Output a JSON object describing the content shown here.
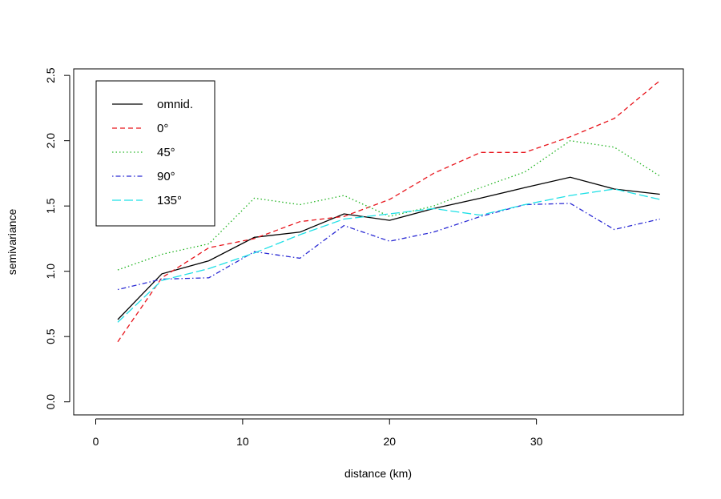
{
  "chart_data": {
    "type": "line",
    "xlabel": "distance (km)",
    "ylabel": "semivariance",
    "xlim": [
      -1.5,
      40
    ],
    "ylim": [
      -0.1,
      2.55
    ],
    "x_ticks": [
      0,
      10,
      20,
      30
    ],
    "y_ticks": [
      0.0,
      0.5,
      1.0,
      1.5,
      2.0,
      2.5
    ],
    "x_tick_labels": [
      "0",
      "10",
      "20",
      "30"
    ],
    "y_tick_labels": [
      "0.0",
      "0.5",
      "1.0",
      "1.5",
      "2.0",
      "2.5"
    ],
    "grid": false,
    "legend_position": "top-left",
    "x": [
      1.5,
      4.5,
      7.7,
      10.8,
      13.9,
      16.9,
      20.0,
      23.0,
      26.2,
      29.2,
      32.3,
      35.3,
      38.4
    ],
    "series": [
      {
        "name": "omnid.",
        "color": "#000000",
        "dash": "solid",
        "values": [
          0.63,
          0.98,
          1.08,
          1.26,
          1.3,
          1.44,
          1.39,
          1.48,
          1.56,
          1.64,
          1.72,
          1.63,
          1.59
        ]
      },
      {
        "name": "0°",
        "color": "#e8141b",
        "dash": "dashed",
        "values": [
          0.46,
          0.95,
          1.18,
          1.25,
          1.38,
          1.42,
          1.55,
          1.75,
          1.91,
          1.91,
          2.03,
          2.17,
          2.46
        ]
      },
      {
        "name": "45°",
        "color": "#22b422",
        "dash": "dotted",
        "values": [
          1.01,
          1.13,
          1.21,
          1.56,
          1.51,
          1.58,
          1.42,
          1.5,
          1.64,
          1.76,
          2.0,
          1.95,
          1.73
        ]
      },
      {
        "name": "90°",
        "color": "#2a2ad4",
        "dash": "dotdash",
        "values": [
          0.86,
          0.94,
          0.95,
          1.15,
          1.1,
          1.35,
          1.23,
          1.3,
          1.42,
          1.51,
          1.52,
          1.32,
          1.4
        ]
      },
      {
        "name": "135°",
        "color": "#1ee0e6",
        "dash": "longdash",
        "values": [
          0.61,
          0.93,
          1.02,
          1.14,
          1.28,
          1.4,
          1.44,
          1.48,
          1.43,
          1.51,
          1.58,
          1.63,
          1.55
        ]
      }
    ]
  }
}
